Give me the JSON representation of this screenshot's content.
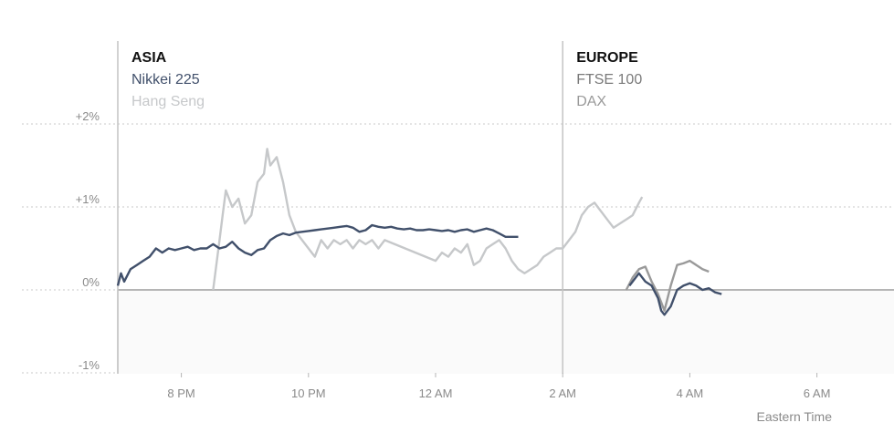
{
  "chart_data": {
    "type": "line",
    "x_unit": "hours after 7 PM Eastern Time",
    "ylim": [
      -1,
      2
    ],
    "y_ticks": [
      {
        "value": 2,
        "label": "+2%"
      },
      {
        "value": 1,
        "label": "+1%"
      },
      {
        "value": 0,
        "label": "0%"
      },
      {
        "value": -1,
        "label": "-1%"
      }
    ],
    "x_ticks": [
      {
        "value": 1,
        "label": "8 PM"
      },
      {
        "value": 3,
        "label": "10 PM"
      },
      {
        "value": 5,
        "label": "12 AM"
      },
      {
        "value": 7,
        "label": "2 AM"
      },
      {
        "value": 9,
        "label": "4 AM"
      },
      {
        "value": 11,
        "label": "6 AM"
      }
    ],
    "xlim": [
      0,
      12.1
    ],
    "xlabel": "Eastern Time",
    "regions": [
      {
        "title": "ASIA",
        "start": 0,
        "items": [
          "Nikkei 225",
          "Hang Seng"
        ]
      },
      {
        "title": "EUROPE",
        "start": 7,
        "items": [
          "FTSE 100",
          "DAX"
        ]
      }
    ],
    "series": [
      {
        "name": "Nikkei 225",
        "color": "#41506b",
        "points": [
          [
            0,
            0.05
          ],
          [
            0.05,
            0.2
          ],
          [
            0.1,
            0.1
          ],
          [
            0.2,
            0.25
          ],
          [
            0.3,
            0.3
          ],
          [
            0.4,
            0.35
          ],
          [
            0.5,
            0.4
          ],
          [
            0.6,
            0.5
          ],
          [
            0.7,
            0.45
          ],
          [
            0.8,
            0.5
          ],
          [
            0.9,
            0.48
          ],
          [
            1.0,
            0.5
          ],
          [
            1.1,
            0.52
          ],
          [
            1.2,
            0.48
          ],
          [
            1.3,
            0.5
          ],
          [
            1.4,
            0.5
          ],
          [
            1.5,
            0.55
          ],
          [
            1.6,
            0.5
          ],
          [
            1.7,
            0.52
          ],
          [
            1.8,
            0.58
          ],
          [
            1.9,
            0.5
          ],
          [
            2.0,
            0.45
          ],
          [
            2.1,
            0.42
          ],
          [
            2.2,
            0.48
          ],
          [
            2.3,
            0.5
          ],
          [
            2.4,
            0.6
          ],
          [
            2.5,
            0.65
          ],
          [
            2.6,
            0.68
          ],
          [
            2.7,
            0.66
          ],
          [
            2.8,
            0.69
          ],
          [
            2.9,
            0.7
          ],
          [
            3.0,
            0.71
          ],
          [
            3.1,
            0.72
          ],
          [
            3.2,
            0.73
          ],
          [
            3.3,
            0.74
          ],
          [
            3.4,
            0.75
          ],
          [
            3.5,
            0.76
          ],
          [
            3.6,
            0.77
          ],
          [
            3.7,
            0.75
          ],
          [
            3.8,
            0.7
          ],
          [
            3.9,
            0.72
          ],
          [
            4.0,
            0.78
          ],
          [
            4.1,
            0.76
          ],
          [
            4.2,
            0.75
          ],
          [
            4.3,
            0.76
          ],
          [
            4.4,
            0.74
          ],
          [
            4.5,
            0.73
          ],
          [
            4.6,
            0.74
          ],
          [
            4.7,
            0.72
          ],
          [
            4.8,
            0.72
          ],
          [
            4.9,
            0.73
          ],
          [
            5.0,
            0.72
          ],
          [
            5.1,
            0.71
          ],
          [
            5.2,
            0.72
          ],
          [
            5.3,
            0.7
          ],
          [
            5.4,
            0.72
          ],
          [
            5.5,
            0.73
          ],
          [
            5.6,
            0.7
          ],
          [
            5.7,
            0.72
          ],
          [
            5.8,
            0.74
          ],
          [
            5.9,
            0.72
          ],
          [
            6.0,
            0.68
          ],
          [
            6.1,
            0.64
          ],
          [
            6.3,
            0.64
          ]
        ]
      },
      {
        "name": "Hang Seng",
        "color": "#c6c8ca",
        "points": [
          [
            1.5,
            0
          ],
          [
            1.6,
            0.6
          ],
          [
            1.65,
            0.9
          ],
          [
            1.7,
            1.2
          ],
          [
            1.8,
            1.0
          ],
          [
            1.9,
            1.1
          ],
          [
            2.0,
            0.8
          ],
          [
            2.1,
            0.9
          ],
          [
            2.2,
            1.3
          ],
          [
            2.3,
            1.4
          ],
          [
            2.35,
            1.7
          ],
          [
            2.4,
            1.5
          ],
          [
            2.5,
            1.6
          ],
          [
            2.6,
            1.3
          ],
          [
            2.7,
            0.9
          ],
          [
            2.8,
            0.7
          ],
          [
            2.9,
            0.6
          ],
          [
            3.0,
            0.5
          ],
          [
            3.1,
            0.4
          ],
          [
            3.2,
            0.6
          ],
          [
            3.3,
            0.5
          ],
          [
            3.4,
            0.6
          ],
          [
            3.5,
            0.55
          ],
          [
            3.6,
            0.6
          ],
          [
            3.7,
            0.5
          ],
          [
            3.8,
            0.6
          ],
          [
            3.9,
            0.55
          ],
          [
            4.0,
            0.6
          ],
          [
            4.1,
            0.5
          ],
          [
            4.2,
            0.6
          ],
          [
            5.0,
            0.35
          ],
          [
            5.1,
            0.45
          ],
          [
            5.2,
            0.4
          ],
          [
            5.3,
            0.5
          ],
          [
            5.4,
            0.45
          ],
          [
            5.5,
            0.55
          ],
          [
            5.6,
            0.3
          ],
          [
            5.7,
            0.35
          ],
          [
            5.8,
            0.5
          ],
          [
            5.9,
            0.55
          ],
          [
            6.0,
            0.6
          ],
          [
            6.1,
            0.5
          ],
          [
            6.2,
            0.35
          ],
          [
            6.3,
            0.25
          ],
          [
            6.4,
            0.2
          ],
          [
            6.5,
            0.25
          ],
          [
            6.6,
            0.3
          ],
          [
            6.7,
            0.4
          ],
          [
            6.8,
            0.45
          ],
          [
            6.9,
            0.5
          ],
          [
            7.0,
            0.5
          ],
          [
            7.1,
            0.6
          ],
          [
            7.2,
            0.7
          ],
          [
            7.3,
            0.9
          ],
          [
            7.4,
            1.0
          ],
          [
            7.5,
            1.05
          ],
          [
            7.6,
            0.95
          ],
          [
            7.7,
            0.85
          ],
          [
            7.8,
            0.75
          ],
          [
            7.9,
            0.8
          ],
          [
            8.0,
            0.85
          ],
          [
            8.1,
            0.9
          ],
          [
            8.2,
            1.05
          ],
          [
            8.25,
            1.12
          ]
        ]
      },
      {
        "name": "FTSE 100",
        "color": "#41506b",
        "points": [
          [
            8.05,
            0.05
          ],
          [
            8.1,
            0.1
          ],
          [
            8.2,
            0.2
          ],
          [
            8.3,
            0.1
          ],
          [
            8.4,
            0.05
          ],
          [
            8.5,
            -0.1
          ],
          [
            8.55,
            -0.25
          ],
          [
            8.6,
            -0.3
          ],
          [
            8.7,
            -0.2
          ],
          [
            8.8,
            0.0
          ],
          [
            8.9,
            0.05
          ],
          [
            9.0,
            0.08
          ],
          [
            9.1,
            0.05
          ],
          [
            9.2,
            0.0
          ],
          [
            9.3,
            0.02
          ],
          [
            9.4,
            -0.03
          ],
          [
            9.5,
            -0.05
          ]
        ]
      },
      {
        "name": "DAX",
        "color": "#9a9a9a",
        "points": [
          [
            8.0,
            0.0
          ],
          [
            8.1,
            0.15
          ],
          [
            8.2,
            0.25
          ],
          [
            8.3,
            0.28
          ],
          [
            8.4,
            0.1
          ],
          [
            8.5,
            -0.05
          ],
          [
            8.6,
            -0.25
          ],
          [
            8.7,
            0.05
          ],
          [
            8.8,
            0.3
          ],
          [
            8.9,
            0.32
          ],
          [
            9.0,
            0.35
          ],
          [
            9.1,
            0.3
          ],
          [
            9.2,
            0.25
          ],
          [
            9.3,
            0.22
          ]
        ]
      }
    ]
  }
}
